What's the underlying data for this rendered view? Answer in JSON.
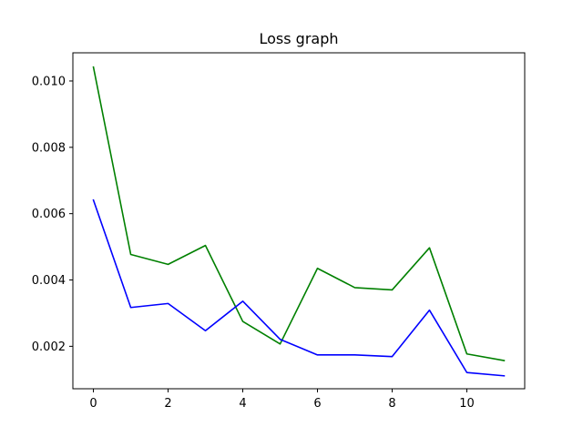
{
  "chart_data": {
    "type": "line",
    "title": "Loss graph",
    "xlabel": "",
    "ylabel": "",
    "xlim": [
      -0.55,
      11.55
    ],
    "ylim": [
      0.00072,
      0.01085
    ],
    "xticks": [
      0,
      2,
      4,
      6,
      8,
      10
    ],
    "xtick_labels": [
      "0",
      "2",
      "4",
      "6",
      "8",
      "10"
    ],
    "yticks": [
      0.002,
      0.004,
      0.006,
      0.008,
      0.01
    ],
    "ytick_labels": [
      "0.002",
      "0.004",
      "0.006",
      "0.008",
      "0.010"
    ],
    "grid": false,
    "x": [
      0,
      1,
      2,
      3,
      4,
      5,
      6,
      7,
      8,
      9,
      10,
      11
    ],
    "series": [
      {
        "color": "#008000",
        "values": [
          0.01042,
          0.00477,
          0.00447,
          0.00504,
          0.00275,
          0.00207,
          0.00435,
          0.00377,
          0.0037,
          0.00497,
          0.00177,
          0.00157
        ]
      },
      {
        "color": "#0000ff",
        "values": [
          0.00641,
          0.00317,
          0.00329,
          0.00247,
          0.00336,
          0.00221,
          0.00174,
          0.00174,
          0.00169,
          0.00309,
          0.00121,
          0.00111
        ]
      }
    ]
  }
}
